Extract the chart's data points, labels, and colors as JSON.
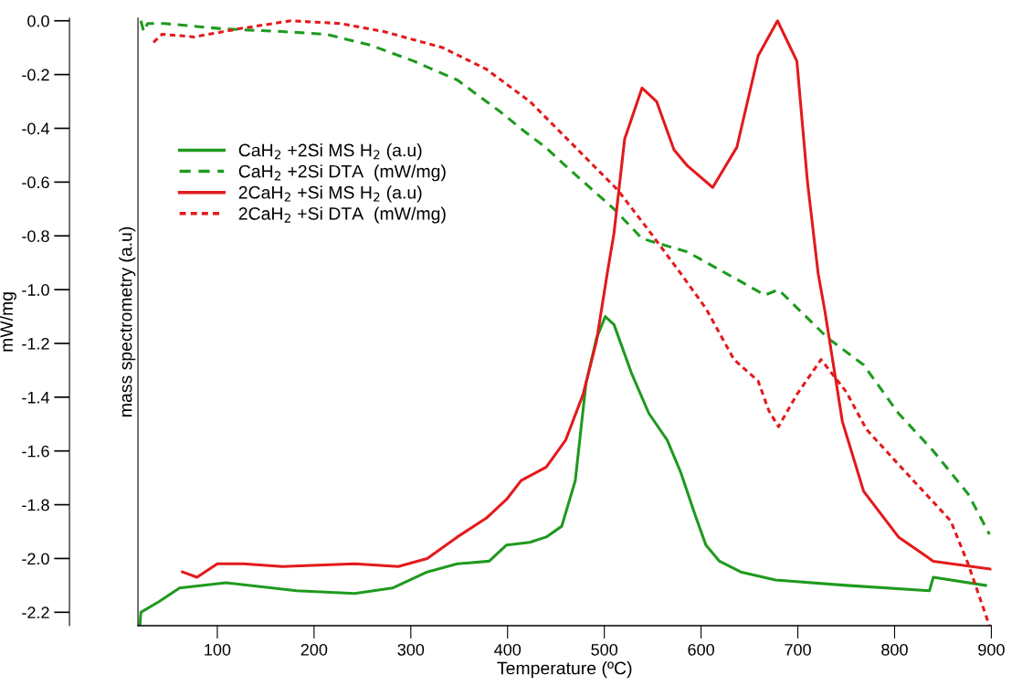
{
  "chart_data": {
    "type": "line",
    "xlabel": "Temperature (ºC)",
    "ylabel": "mW/mg",
    "y2label": "mass spectrometry (a.u)",
    "xlim": [
      18,
      900
    ],
    "xticks": [
      100,
      200,
      300,
      400,
      500,
      600,
      700,
      800,
      900
    ],
    "ylim": [
      -2.25,
      0.01
    ],
    "yticks": [
      {
        "value": 0,
        "label": "0.0"
      },
      {
        "value": -0.2,
        "label": "-0.2"
      },
      {
        "value": -0.4,
        "label": "-0.4"
      },
      {
        "value": -0.6,
        "label": "-0.6"
      },
      {
        "value": -0.8,
        "label": "-0.8"
      },
      {
        "value": -1.0,
        "label": "-1.0"
      },
      {
        "value": -1.2,
        "label": "-1.2"
      },
      {
        "value": -1.4,
        "label": "-1.4"
      },
      {
        "value": -1.6,
        "label": "-1.6"
      },
      {
        "value": -1.8,
        "label": "-1.8"
      },
      {
        "value": -2.0,
        "label": "-2.0"
      },
      {
        "value": -2.2,
        "label": "-2.2"
      }
    ],
    "grid": false,
    "legend": "top left",
    "marker": "none",
    "series": [
      {
        "name": "CaH$_{2}$ +2Si MS H$_{2}$ (a.u)",
        "color": "#1f9a1f",
        "line_style": "solid",
        "x": [
          20,
          21,
          40,
          61,
          109,
          182,
          242,
          281,
          317,
          348,
          381,
          399,
          423,
          440,
          456,
          470,
          481,
          492,
          501,
          510,
          528,
          546,
          565,
          579,
          594,
          605,
          619,
          641,
          677,
          750,
          836,
          840,
          894
        ],
        "values": [
          -2.25,
          -2.2,
          -2.16,
          -2.11,
          -2.09,
          -2.12,
          -2.13,
          -2.11,
          -2.05,
          -2.02,
          -2.01,
          -1.95,
          -1.94,
          -1.92,
          -1.88,
          -1.71,
          -1.35,
          -1.18,
          -1.1,
          -1.13,
          -1.31,
          -1.46,
          -1.56,
          -1.68,
          -1.84,
          -1.95,
          -2.01,
          -2.05,
          -2.08,
          -2.1,
          -2.12,
          -2.07,
          -2.1
        ]
      },
      {
        "name": "CaH$_{2}$ +2Si DTA  (mW/mg)",
        "color": "#1f9a1f",
        "line_style": "dashed",
        "x": [
          21,
          24,
          28,
          45,
          106,
          167,
          212,
          258,
          303,
          348,
          393,
          417,
          439,
          460,
          510,
          539,
          586,
          626,
          666,
          680,
          731,
          768,
          804,
          840,
          876,
          898
        ],
        "values": [
          0.0,
          -0.04,
          -0.01,
          -0.01,
          -0.03,
          -0.04,
          -0.05,
          -0.09,
          -0.15,
          -0.22,
          -0.34,
          -0.41,
          -0.47,
          -0.54,
          -0.7,
          -0.81,
          -0.86,
          -0.94,
          -1.02,
          -1.0,
          -1.18,
          -1.28,
          -1.46,
          -1.6,
          -1.76,
          -1.91
        ]
      },
      {
        "name": "2CaH$_{2}$ +Si MS H$_{2}$ (a.u)",
        "color": "#e31a1c",
        "line_style": "solid",
        "x": [
          64,
          79,
          100,
          127,
          167,
          242,
          287,
          317,
          348,
          378,
          399,
          414,
          440,
          460,
          478,
          492,
          503,
          510,
          521,
          539,
          554,
          572,
          586,
          612,
          637,
          659,
          679,
          699,
          710,
          721,
          728,
          746,
          768,
          804,
          840,
          900
        ],
        "values": [
          -2.05,
          -2.07,
          -2.02,
          -2.02,
          -2.03,
          -2.02,
          -2.03,
          -2.0,
          -1.92,
          -1.85,
          -1.78,
          -1.71,
          -1.66,
          -1.56,
          -1.39,
          -1.19,
          -0.94,
          -0.79,
          -0.44,
          -0.25,
          -0.3,
          -0.48,
          -0.54,
          -0.62,
          -0.47,
          -0.13,
          0.0,
          -0.15,
          -0.6,
          -0.94,
          -1.08,
          -1.49,
          -1.75,
          -1.92,
          -2.01,
          -2.04
        ]
      },
      {
        "name": "2CaH$_{2}$ +Si DTA  (mW/mg)",
        "color": "#e31a1c",
        "line_style": "dotted",
        "x": [
          34,
          43,
          76,
          122,
          176,
          227,
          272,
          333,
          378,
          423,
          470,
          514,
          546,
          579,
          605,
          634,
          659,
          670,
          680,
          699,
          724,
          750,
          771,
          804,
          840,
          858,
          876,
          898
        ],
        "values": [
          -0.08,
          -0.05,
          -0.06,
          -0.03,
          0.0,
          -0.01,
          -0.04,
          -0.1,
          -0.18,
          -0.3,
          -0.47,
          -0.63,
          -0.78,
          -0.94,
          -1.07,
          -1.26,
          -1.34,
          -1.45,
          -1.51,
          -1.39,
          -1.26,
          -1.38,
          -1.52,
          -1.65,
          -1.79,
          -1.86,
          -2.02,
          -2.25
        ]
      }
    ]
  }
}
